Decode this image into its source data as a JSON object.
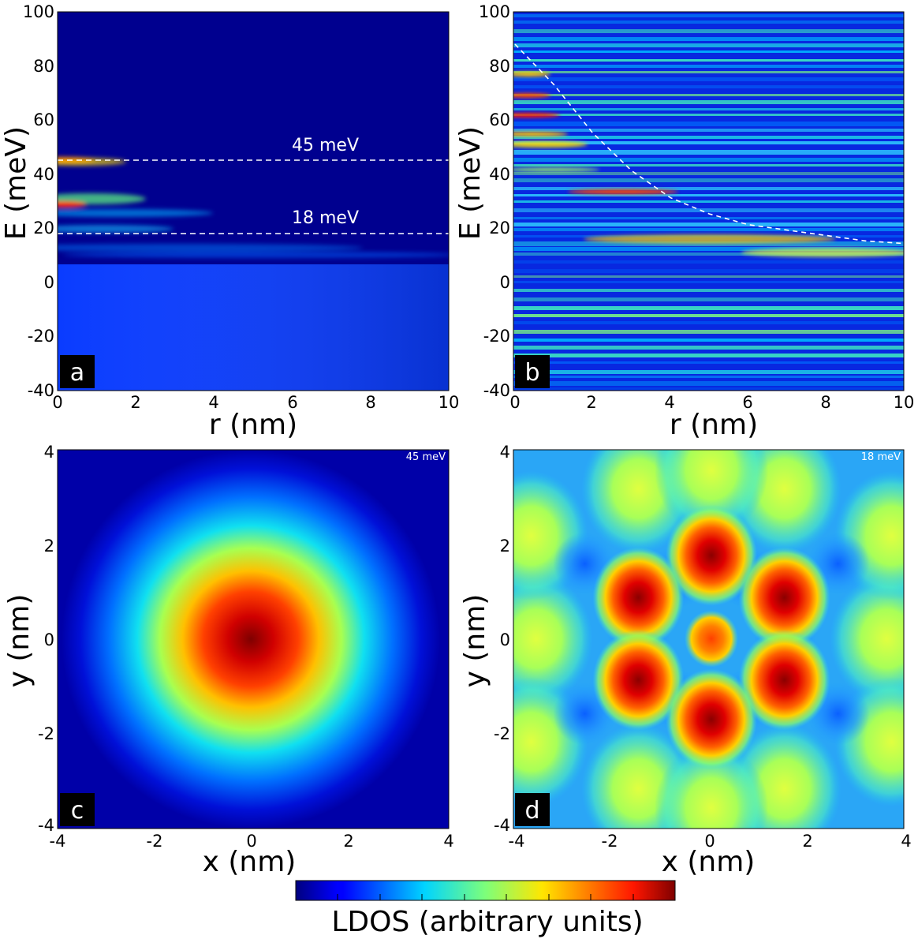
{
  "figure": {
    "colorbar_label": "LDOS (arbitrary units)"
  },
  "chart_data": [
    {
      "type": "heatmap",
      "panel": "a",
      "xlabel": "r (nm)",
      "ylabel": "E (meV)",
      "xlim": [
        0,
        10
      ],
      "ylim": [
        -40,
        100
      ],
      "xticks": [
        "0",
        "2",
        "4",
        "6",
        "8",
        "10"
      ],
      "yticks": [
        "-40",
        "-20",
        "0",
        "20",
        "40",
        "60",
        "80",
        "100"
      ],
      "dashed_lines": [
        {
          "energy": 45,
          "label": "45 meV"
        },
        {
          "energy": 18,
          "label": "18 meV"
        }
      ]
    },
    {
      "type": "heatmap",
      "panel": "b",
      "xlabel": "r (nm)",
      "ylabel": "E (meV)",
      "xlim": [
        0,
        10
      ],
      "ylim": [
        -40,
        100
      ],
      "xticks": [
        "0",
        "2",
        "4",
        "6",
        "8",
        "10"
      ],
      "yticks": [
        "-40",
        "-20",
        "0",
        "20",
        "40",
        "60",
        "80",
        "100"
      ],
      "dashed_curve": {
        "r": [
          0,
          1,
          2,
          3,
          4,
          5,
          6,
          7,
          8,
          9,
          10
        ],
        "E": [
          88,
          73,
          55,
          41,
          31,
          25,
          21,
          19,
          17,
          15,
          14
        ]
      }
    },
    {
      "type": "heatmap",
      "panel": "c",
      "energy_label": "45 meV",
      "xlabel": "x (nm)",
      "ylabel": "y (nm)",
      "xlim": [
        -4,
        4
      ],
      "ylim": [
        -4,
        4
      ],
      "xticks": [
        "-4",
        "-2",
        "0",
        "2",
        "4"
      ],
      "yticks": [
        "-4",
        "-2",
        "0",
        "2",
        "4"
      ]
    },
    {
      "type": "heatmap",
      "panel": "d",
      "energy_label": "18 meV",
      "xlabel": "x (nm)",
      "ylabel": "y (nm)",
      "xlim": [
        -4,
        4
      ],
      "ylim": [
        -4,
        4
      ],
      "xticks": [
        "-4",
        "-2",
        "0",
        "2",
        "4"
      ],
      "yticks": [
        "-4",
        "-2",
        "0",
        "2",
        "4"
      ]
    }
  ]
}
